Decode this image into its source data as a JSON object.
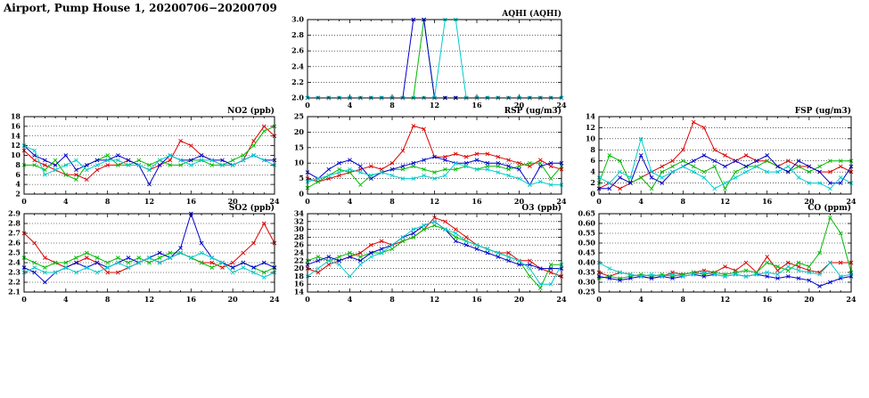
{
  "page": {
    "title": "Airport, Pump House 1, 20200706−20200709"
  },
  "colors": {
    "red": "#dd0000",
    "green": "#00bb00",
    "blue": "#0000cc",
    "cyan": "#00cccc"
  },
  "x_hours": [
    0,
    1,
    2,
    3,
    4,
    5,
    6,
    7,
    8,
    9,
    10,
    11,
    12,
    13,
    14,
    15,
    16,
    17,
    18,
    19,
    20,
    21,
    22,
    23,
    24
  ],
  "chart_data": [
    {
      "id": "aqhi",
      "type": "line",
      "title": "AQHI (AQHI)",
      "xlim": [
        0,
        24
      ],
      "xticks": [
        0,
        4,
        8,
        12,
        16,
        20,
        24
      ],
      "ylim": [
        2.0,
        3.0
      ],
      "yticks": [
        "2.0",
        "2.2",
        "2.4",
        "2.6",
        "2.8",
        "3.0"
      ],
      "series": [
        {
          "name": "red",
          "color": "red",
          "values": [
            2,
            2,
            2,
            2,
            2,
            2,
            2,
            2,
            2,
            2,
            2,
            2,
            2,
            2,
            2,
            2,
            2,
            2,
            2,
            2,
            2,
            2,
            2,
            2,
            2
          ]
        },
        {
          "name": "green",
          "color": "green",
          "values": [
            2,
            2,
            2,
            2,
            2,
            2,
            2,
            2,
            2,
            2,
            2,
            3,
            2,
            2,
            2,
            2,
            2,
            2,
            2,
            2,
            2,
            2,
            2,
            2,
            2
          ]
        },
        {
          "name": "blue",
          "color": "blue",
          "values": [
            2,
            2,
            2,
            2,
            2,
            2,
            2,
            2,
            2,
            2,
            3,
            3,
            2,
            2,
            2,
            2,
            2,
            2,
            2,
            2,
            2,
            2,
            2,
            2,
            2
          ]
        },
        {
          "name": "cyan",
          "color": "cyan",
          "values": [
            2,
            2,
            2,
            2,
            2,
            2,
            2,
            2,
            2,
            2,
            2,
            2,
            2,
            3,
            3,
            2,
            2,
            2,
            2,
            2,
            2,
            2,
            2,
            2,
            2
          ]
        }
      ]
    },
    {
      "id": "no2",
      "type": "line",
      "title": "NO2 (ppb)",
      "xlim": [
        0,
        24
      ],
      "xticks": [
        0,
        4,
        8,
        12,
        16,
        20,
        24
      ],
      "ylim": [
        2,
        18
      ],
      "yticks": [
        "2",
        "4",
        "6",
        "8",
        "10",
        "12",
        "14",
        "16",
        "18"
      ],
      "series": [
        {
          "name": "red",
          "color": "red",
          "values": [
            11,
            9,
            8,
            7,
            6,
            6,
            5,
            7,
            8,
            8,
            9,
            8,
            7,
            8,
            9,
            13,
            12,
            10,
            9,
            8,
            8,
            9,
            13,
            16,
            14
          ]
        },
        {
          "name": "green",
          "color": "green",
          "values": [
            8,
            8,
            7,
            9,
            6,
            5,
            8,
            9,
            10,
            8,
            8,
            9,
            8,
            9,
            8,
            8,
            9,
            9,
            8,
            8,
            9,
            10,
            12,
            15,
            16
          ]
        },
        {
          "name": "blue",
          "color": "blue",
          "values": [
            12,
            10,
            9,
            8,
            10,
            7,
            8,
            9,
            9,
            10,
            9,
            8,
            4,
            8,
            10,
            9,
            9,
            10,
            9,
            9,
            8,
            9,
            10,
            9,
            9
          ]
        },
        {
          "name": "cyan",
          "color": "cyan",
          "values": [
            12,
            11,
            6,
            7,
            8,
            9,
            7,
            8,
            9,
            9,
            8,
            8,
            7,
            9,
            10,
            9,
            8,
            9,
            9,
            8,
            8,
            9,
            10,
            9,
            8
          ]
        }
      ]
    },
    {
      "id": "rsp",
      "type": "line",
      "title": "RSP (ug/m3)",
      "xlim": [
        0,
        24
      ],
      "xticks": [
        0,
        4,
        8,
        12,
        16,
        20,
        24
      ],
      "ylim": [
        0,
        25
      ],
      "yticks": [
        "0",
        "5",
        "10",
        "15",
        "20",
        "25"
      ],
      "series": [
        {
          "name": "red",
          "color": "red",
          "values": [
            5,
            4,
            5,
            6,
            7,
            8,
            9,
            8,
            10,
            14,
            22,
            21,
            12,
            12,
            13,
            12,
            13,
            13,
            12,
            11,
            10,
            9,
            11,
            9,
            8
          ]
        },
        {
          "name": "green",
          "color": "green",
          "values": [
            2,
            4,
            6,
            8,
            7,
            3,
            6,
            7,
            8,
            8,
            9,
            8,
            7,
            8,
            8,
            9,
            8,
            9,
            9,
            8,
            9,
            10,
            10,
            5,
            9
          ]
        },
        {
          "name": "blue",
          "color": "blue",
          "values": [
            7,
            5,
            8,
            10,
            11,
            9,
            5,
            7,
            8,
            9,
            10,
            11,
            12,
            11,
            10,
            10,
            11,
            10,
            10,
            9,
            8,
            3,
            9,
            10,
            10
          ]
        },
        {
          "name": "cyan",
          "color": "cyan",
          "values": [
            4,
            5,
            6,
            7,
            8,
            7,
            6,
            7,
            6,
            5,
            5,
            6,
            5,
            6,
            10,
            9,
            8,
            8,
            7,
            6,
            5,
            3,
            4,
            3,
            3
          ]
        }
      ]
    },
    {
      "id": "fsp",
      "type": "line",
      "title": "FSP (ug/m3)",
      "xlim": [
        0,
        24
      ],
      "xticks": [
        0,
        4,
        8,
        12,
        16,
        20,
        24
      ],
      "ylim": [
        0,
        14
      ],
      "yticks": [
        "0",
        "2",
        "4",
        "6",
        "8",
        "10",
        "12",
        "14"
      ],
      "series": [
        {
          "name": "red",
          "color": "red",
          "values": [
            1,
            2,
            1,
            2,
            3,
            4,
            5,
            6,
            8,
            13,
            12,
            8,
            7,
            6,
            7,
            6,
            6,
            5,
            6,
            5,
            5,
            4,
            4,
            5,
            4
          ]
        },
        {
          "name": "green",
          "color": "green",
          "values": [
            2,
            7,
            6,
            2,
            3,
            1,
            4,
            5,
            6,
            5,
            4,
            5,
            1,
            4,
            5,
            5,
            6,
            5,
            4,
            5,
            4,
            5,
            6,
            6,
            6
          ]
        },
        {
          "name": "blue",
          "color": "blue",
          "values": [
            1,
            1,
            3,
            2,
            7,
            3,
            2,
            4,
            5,
            6,
            7,
            6,
            5,
            6,
            5,
            6,
            7,
            5,
            4,
            6,
            5,
            4,
            2,
            2,
            5
          ]
        },
        {
          "name": "cyan",
          "color": "cyan",
          "values": [
            3,
            2,
            4,
            3,
            10,
            4,
            3,
            4,
            5,
            4,
            3,
            1,
            2,
            3,
            4,
            5,
            4,
            4,
            5,
            3,
            2,
            2,
            1,
            3,
            2
          ]
        }
      ]
    },
    {
      "id": "so2",
      "type": "line",
      "title": "SO2 (ppb)",
      "xlim": [
        0,
        24
      ],
      "xticks": [
        0,
        4,
        8,
        12,
        16,
        20,
        24
      ],
      "ylim": [
        2.1,
        2.9
      ],
      "yticks": [
        "2.1",
        "2.2",
        "2.3",
        "2.4",
        "2.5",
        "2.6",
        "2.7",
        "2.8",
        "2.9"
      ],
      "series": [
        {
          "name": "red",
          "color": "red",
          "values": [
            2.7,
            2.6,
            2.45,
            2.4,
            2.35,
            2.4,
            2.45,
            2.4,
            2.3,
            2.3,
            2.35,
            2.4,
            2.45,
            2.4,
            2.45,
            2.5,
            2.45,
            2.4,
            2.4,
            2.35,
            2.4,
            2.5,
            2.6,
            2.8,
            2.6
          ]
        },
        {
          "name": "green",
          "color": "green",
          "values": [
            2.45,
            2.4,
            2.35,
            2.4,
            2.4,
            2.45,
            2.5,
            2.45,
            2.4,
            2.45,
            2.4,
            2.45,
            2.4,
            2.45,
            2.5,
            2.5,
            2.45,
            2.4,
            2.35,
            2.4,
            2.35,
            2.4,
            2.35,
            2.3,
            2.35
          ]
        },
        {
          "name": "blue",
          "color": "blue",
          "values": [
            2.35,
            2.3,
            2.2,
            2.3,
            2.35,
            2.4,
            2.35,
            2.4,
            2.35,
            2.4,
            2.45,
            2.4,
            2.45,
            2.5,
            2.45,
            2.55,
            2.9,
            2.6,
            2.45,
            2.4,
            2.35,
            2.4,
            2.35,
            2.4,
            2.35
          ]
        },
        {
          "name": "cyan",
          "color": "cyan",
          "values": [
            2.3,
            2.35,
            2.3,
            2.3,
            2.35,
            2.3,
            2.35,
            2.3,
            2.35,
            2.4,
            2.35,
            2.4,
            2.45,
            2.4,
            2.45,
            2.5,
            2.45,
            2.5,
            2.45,
            2.4,
            2.3,
            2.35,
            2.3,
            2.25,
            2.3
          ]
        }
      ]
    },
    {
      "id": "o3",
      "type": "line",
      "title": "O3 (ppb)",
      "xlim": [
        0,
        24
      ],
      "xticks": [
        0,
        4,
        8,
        12,
        16,
        20,
        24
      ],
      "ylim": [
        14,
        34
      ],
      "yticks": [
        "14",
        "16",
        "18",
        "20",
        "22",
        "24",
        "26",
        "28",
        "30",
        "32",
        "34"
      ],
      "series": [
        {
          "name": "red",
          "color": "red",
          "values": [
            20,
            19,
            21,
            22,
            23,
            24,
            26,
            27,
            26,
            27,
            28,
            30,
            33,
            32,
            30,
            28,
            26,
            25,
            24,
            24,
            22,
            22,
            20,
            19,
            18
          ]
        },
        {
          "name": "green",
          "color": "green",
          "values": [
            22,
            23,
            22,
            23,
            24,
            23,
            24,
            24,
            25,
            27,
            28,
            30,
            31,
            30,
            28,
            27,
            26,
            25,
            24,
            23,
            22,
            18,
            15,
            21,
            21
          ]
        },
        {
          "name": "blue",
          "color": "blue",
          "values": [
            21,
            22,
            23,
            22,
            23,
            22,
            24,
            25,
            26,
            28,
            29,
            31,
            32,
            30,
            27,
            26,
            25,
            24,
            23,
            22,
            21,
            21,
            20,
            20,
            20
          ]
        },
        {
          "name": "cyan",
          "color": "cyan",
          "values": [
            18,
            20,
            22,
            21,
            18,
            21,
            23,
            24,
            26,
            28,
            30,
            31,
            32,
            30,
            29,
            27,
            26,
            25,
            24,
            23,
            22,
            20,
            16,
            16,
            21
          ]
        }
      ]
    },
    {
      "id": "co",
      "type": "line",
      "title": "CO (ppm)",
      "xlim": [
        0,
        24
      ],
      "xticks": [
        0,
        4,
        8,
        12,
        16,
        20,
        24
      ],
      "ylim": [
        0.25,
        0.65
      ],
      "yticks": [
        "0.25",
        "0.30",
        "0.35",
        "0.40",
        "0.45",
        "0.50",
        "0.55",
        "0.60",
        "0.65"
      ],
      "series": [
        {
          "name": "red",
          "color": "red",
          "values": [
            0.35,
            0.33,
            0.35,
            0.34,
            0.33,
            0.32,
            0.33,
            0.35,
            0.34,
            0.35,
            0.36,
            0.35,
            0.38,
            0.36,
            0.4,
            0.35,
            0.43,
            0.36,
            0.4,
            0.38,
            0.36,
            0.35,
            0.4,
            0.4,
            0.4
          ]
        },
        {
          "name": "green",
          "color": "green",
          "values": [
            0.32,
            0.33,
            0.32,
            0.33,
            0.34,
            0.33,
            0.34,
            0.33,
            0.34,
            0.35,
            0.34,
            0.35,
            0.34,
            0.35,
            0.36,
            0.35,
            0.4,
            0.38,
            0.36,
            0.4,
            0.38,
            0.45,
            0.63,
            0.55,
            0.35
          ]
        },
        {
          "name": "blue",
          "color": "blue",
          "values": [
            0.33,
            0.32,
            0.31,
            0.32,
            0.33,
            0.32,
            0.33,
            0.32,
            0.33,
            0.34,
            0.33,
            0.34,
            0.33,
            0.34,
            0.33,
            0.34,
            0.33,
            0.32,
            0.33,
            0.32,
            0.31,
            0.28,
            0.3,
            0.32,
            0.33
          ]
        },
        {
          "name": "cyan",
          "color": "cyan",
          "values": [
            0.4,
            0.37,
            0.35,
            0.34,
            0.33,
            0.34,
            0.33,
            0.34,
            0.33,
            0.34,
            0.35,
            0.34,
            0.33,
            0.34,
            0.33,
            0.34,
            0.35,
            0.34,
            0.38,
            0.36,
            0.35,
            0.34,
            0.4,
            0.33,
            0.34
          ]
        }
      ]
    }
  ]
}
